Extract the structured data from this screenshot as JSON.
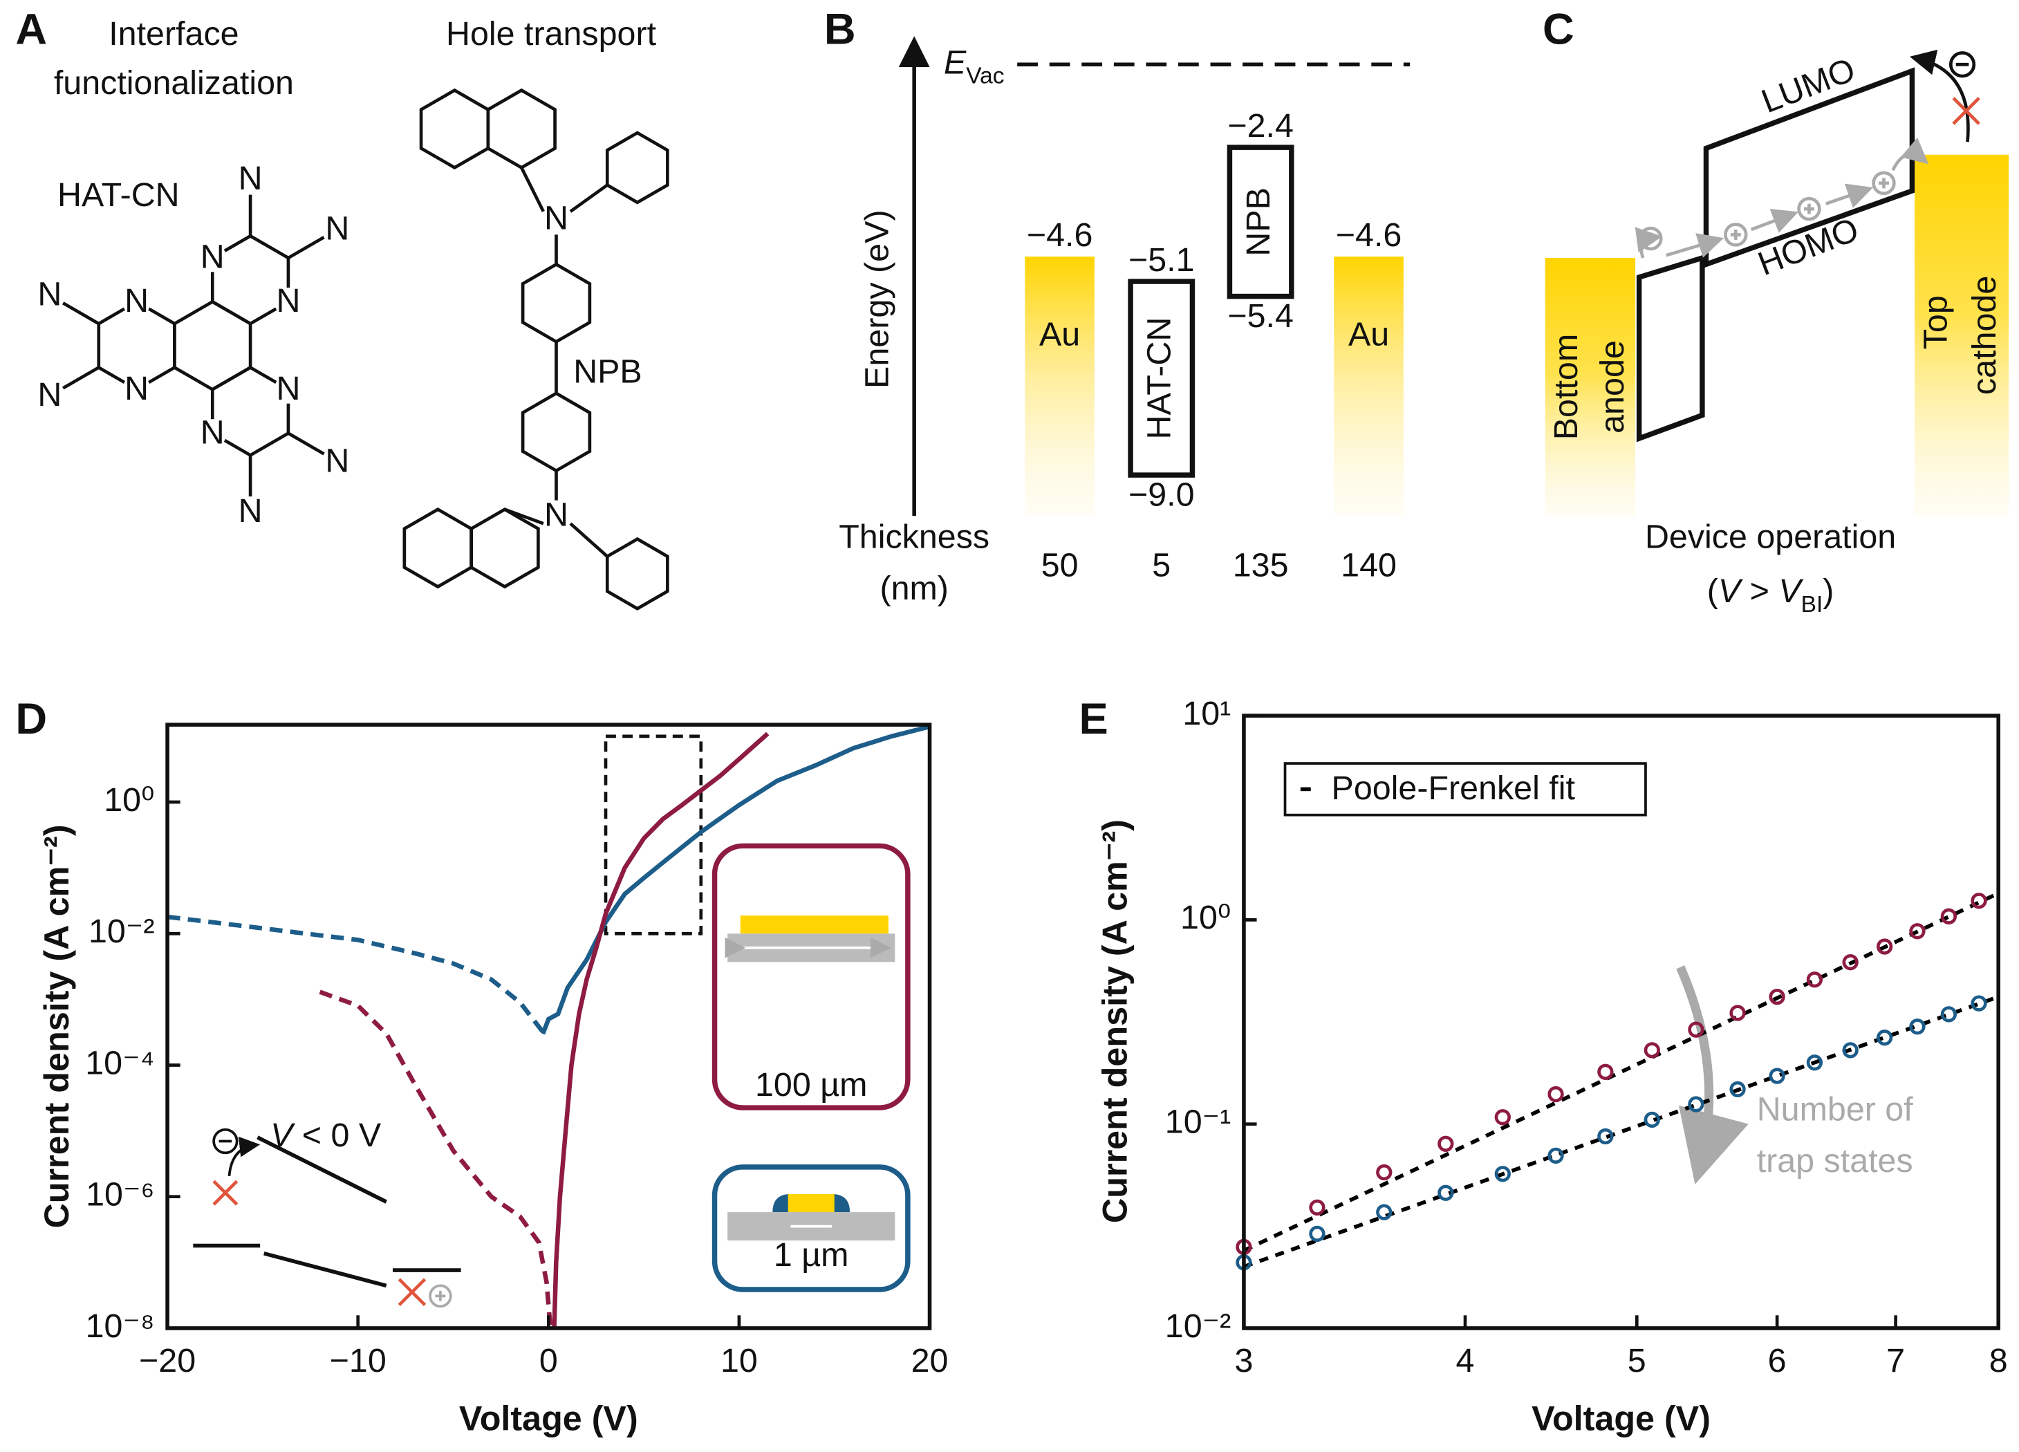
{
  "panels": {
    "a": {
      "label": "A",
      "left_title": [
        "Interface",
        "functionalization"
      ],
      "right_title": "Hole transport",
      "hatcn": "HAT-CN",
      "npb": "NPB",
      "atom": "N"
    },
    "b": {
      "label": "B",
      "evac": {
        "main": "E",
        "sub": "Vac"
      },
      "energy_axis": "Energy (eV)",
      "thickness_label": [
        "Thickness",
        "(nm)"
      ],
      "layers": [
        {
          "name": "Au",
          "kind": "metal",
          "top": {
            "value": -4.6,
            "label": "−4.6"
          },
          "thickness": 50
        },
        {
          "name": "HAT-CN",
          "kind": "organic",
          "top": {
            "value": -5.1,
            "label": "−5.1"
          },
          "bottom": {
            "value": -9.0,
            "label": "−9.0"
          },
          "thickness": 5
        },
        {
          "name": "NPB",
          "kind": "organic",
          "top": {
            "value": -2.4,
            "label": "−2.4"
          },
          "bottom": {
            "value": -5.4,
            "label": "−5.4"
          },
          "thickness": 135
        },
        {
          "name": "Au",
          "kind": "metal",
          "top": {
            "value": -4.6,
            "label": "−4.6"
          },
          "thickness": 140
        }
      ]
    },
    "c": {
      "label": "C",
      "lumo": "LUMO",
      "homo": "HOMO",
      "anode": [
        "Bottom",
        "anode"
      ],
      "cathode": [
        "Top",
        "cathode"
      ],
      "caption": "Device operation",
      "condition": [
        "(",
        "V",
        " > ",
        "V",
        "BI",
        ")"
      ]
    }
  },
  "chart_data": [
    {
      "type": "line",
      "label": "D",
      "xlabel": "Voltage (V)",
      "ylabel": "Current density (A cm⁻²)",
      "xlim": [
        -20,
        20
      ],
      "xticks": [
        {
          "value": -20,
          "label": "−20"
        },
        {
          "value": -10,
          "label": "−10"
        },
        0,
        10,
        20
      ],
      "yscale": "log",
      "ylim": [
        1e-08,
        15
      ],
      "yticks": [
        {
          "value": 1e-08,
          "label": "10⁻⁸"
        },
        {
          "value": 1e-06,
          "label": "10⁻⁶"
        },
        {
          "value": 0.0001,
          "label": "10⁻⁴"
        },
        {
          "value": 0.01,
          "label": "10⁻²"
        },
        {
          "value": 1,
          "label": "10⁰"
        }
      ],
      "series": [
        {
          "color": "#1d5d8a",
          "dash": true,
          "x": [
            -20,
            -15,
            -10,
            -7,
            -5,
            -3,
            -1.5,
            -0.3
          ],
          "values": [
            0.018,
            0.012,
            0.008,
            0.005,
            0.0035,
            0.002,
            0.0009,
            0.00032
          ]
        },
        {
          "color": "#1d5d8a",
          "dash": false,
          "x": [
            -0.3,
            0,
            0.5,
            1,
            2,
            3,
            4,
            5,
            6,
            8,
            10,
            12,
            14,
            16,
            18,
            20
          ],
          "values": [
            0.0003,
            0.0005,
            0.0006,
            0.0015,
            0.004,
            0.015,
            0.04,
            0.07,
            0.12,
            0.35,
            0.9,
            2.1,
            3.6,
            6.6,
            10,
            14
          ]
        },
        {
          "color": "#8e1b42",
          "dash": true,
          "x": [
            -12,
            -10,
            -8.5,
            -7,
            -5,
            -3,
            -1.5,
            -0.5,
            -0.1,
            0.1
          ],
          "values": [
            0.0013,
            0.0008,
            0.0003,
            5e-05,
            5e-06,
            1e-06,
            5e-07,
            2e-07,
            5e-08,
            1e-08
          ]
        },
        {
          "color": "#8e1b42",
          "dash": false,
          "x": [
            0.3,
            0.4,
            0.6,
            0.9,
            1.2,
            1.6,
            2.0,
            2.5,
            3,
            4,
            5,
            6,
            7,
            8,
            9,
            10,
            11.5
          ],
          "values": [
            1e-08,
            1e-07,
            1e-06,
            1e-05,
            0.0001,
            0.0006,
            0.002,
            0.006,
            0.02,
            0.1,
            0.28,
            0.55,
            0.9,
            1.5,
            2.5,
            4.5,
            11
          ]
        }
      ],
      "zoom_box": {
        "x": [
          3,
          8
        ],
        "y": [
          0.01,
          10
        ]
      },
      "insets": {
        "sweep": [
          "V",
          " < 0 V"
        ],
        "large": "100 µm",
        "small": "1 µm"
      }
    },
    {
      "type": "scatter",
      "label": "E",
      "xlabel": "Voltage (V)",
      "ylabel": "Current density (A cm⁻²)",
      "xscale": "log",
      "xlim": [
        3,
        8
      ],
      "xticks": [
        3,
        4,
        5,
        6,
        7,
        8
      ],
      "yscale": "log",
      "ylim": [
        0.01,
        10
      ],
      "yticks": [
        {
          "value": 0.01,
          "label": "10⁻²"
        },
        {
          "value": 0.1,
          "label": "10⁻¹"
        },
        {
          "value": 1,
          "label": "10⁰"
        },
        {
          "value": 10,
          "label": "10¹"
        }
      ],
      "series": [
        {
          "color": "#8e1b42",
          "x": [
            3.0,
            3.3,
            3.6,
            3.9,
            4.2,
            4.5,
            4.8,
            5.1,
            5.4,
            5.7,
            6.0,
            6.3,
            6.6,
            6.9,
            7.2,
            7.5,
            7.8
          ],
          "values": [
            0.025,
            0.039,
            0.058,
            0.08,
            0.108,
            0.14,
            0.18,
            0.23,
            0.29,
            0.35,
            0.42,
            0.51,
            0.62,
            0.74,
            0.88,
            1.04,
            1.24
          ]
        },
        {
          "color": "#1d5d8a",
          "x": [
            3.0,
            3.3,
            3.6,
            3.9,
            4.2,
            4.5,
            4.8,
            5.1,
            5.4,
            5.7,
            6.0,
            6.3,
            6.6,
            6.9,
            7.2,
            7.5,
            7.8
          ],
          "values": [
            0.021,
            0.029,
            0.037,
            0.046,
            0.057,
            0.07,
            0.087,
            0.105,
            0.125,
            0.148,
            0.172,
            0.2,
            0.23,
            0.265,
            0.3,
            0.345,
            0.39
          ]
        }
      ],
      "fit": {
        "name": "Poole-Frenkel fit",
        "color": "#000000",
        "lines": [
          {
            "x": [
              3,
              8
            ],
            "values": [
              0.024,
              1.35
            ]
          },
          {
            "x": [
              3,
              8
            ],
            "values": [
              0.02,
              0.42
            ]
          }
        ]
      },
      "legend": "upper left",
      "annotation": [
        "Number of",
        "trap states"
      ]
    }
  ]
}
